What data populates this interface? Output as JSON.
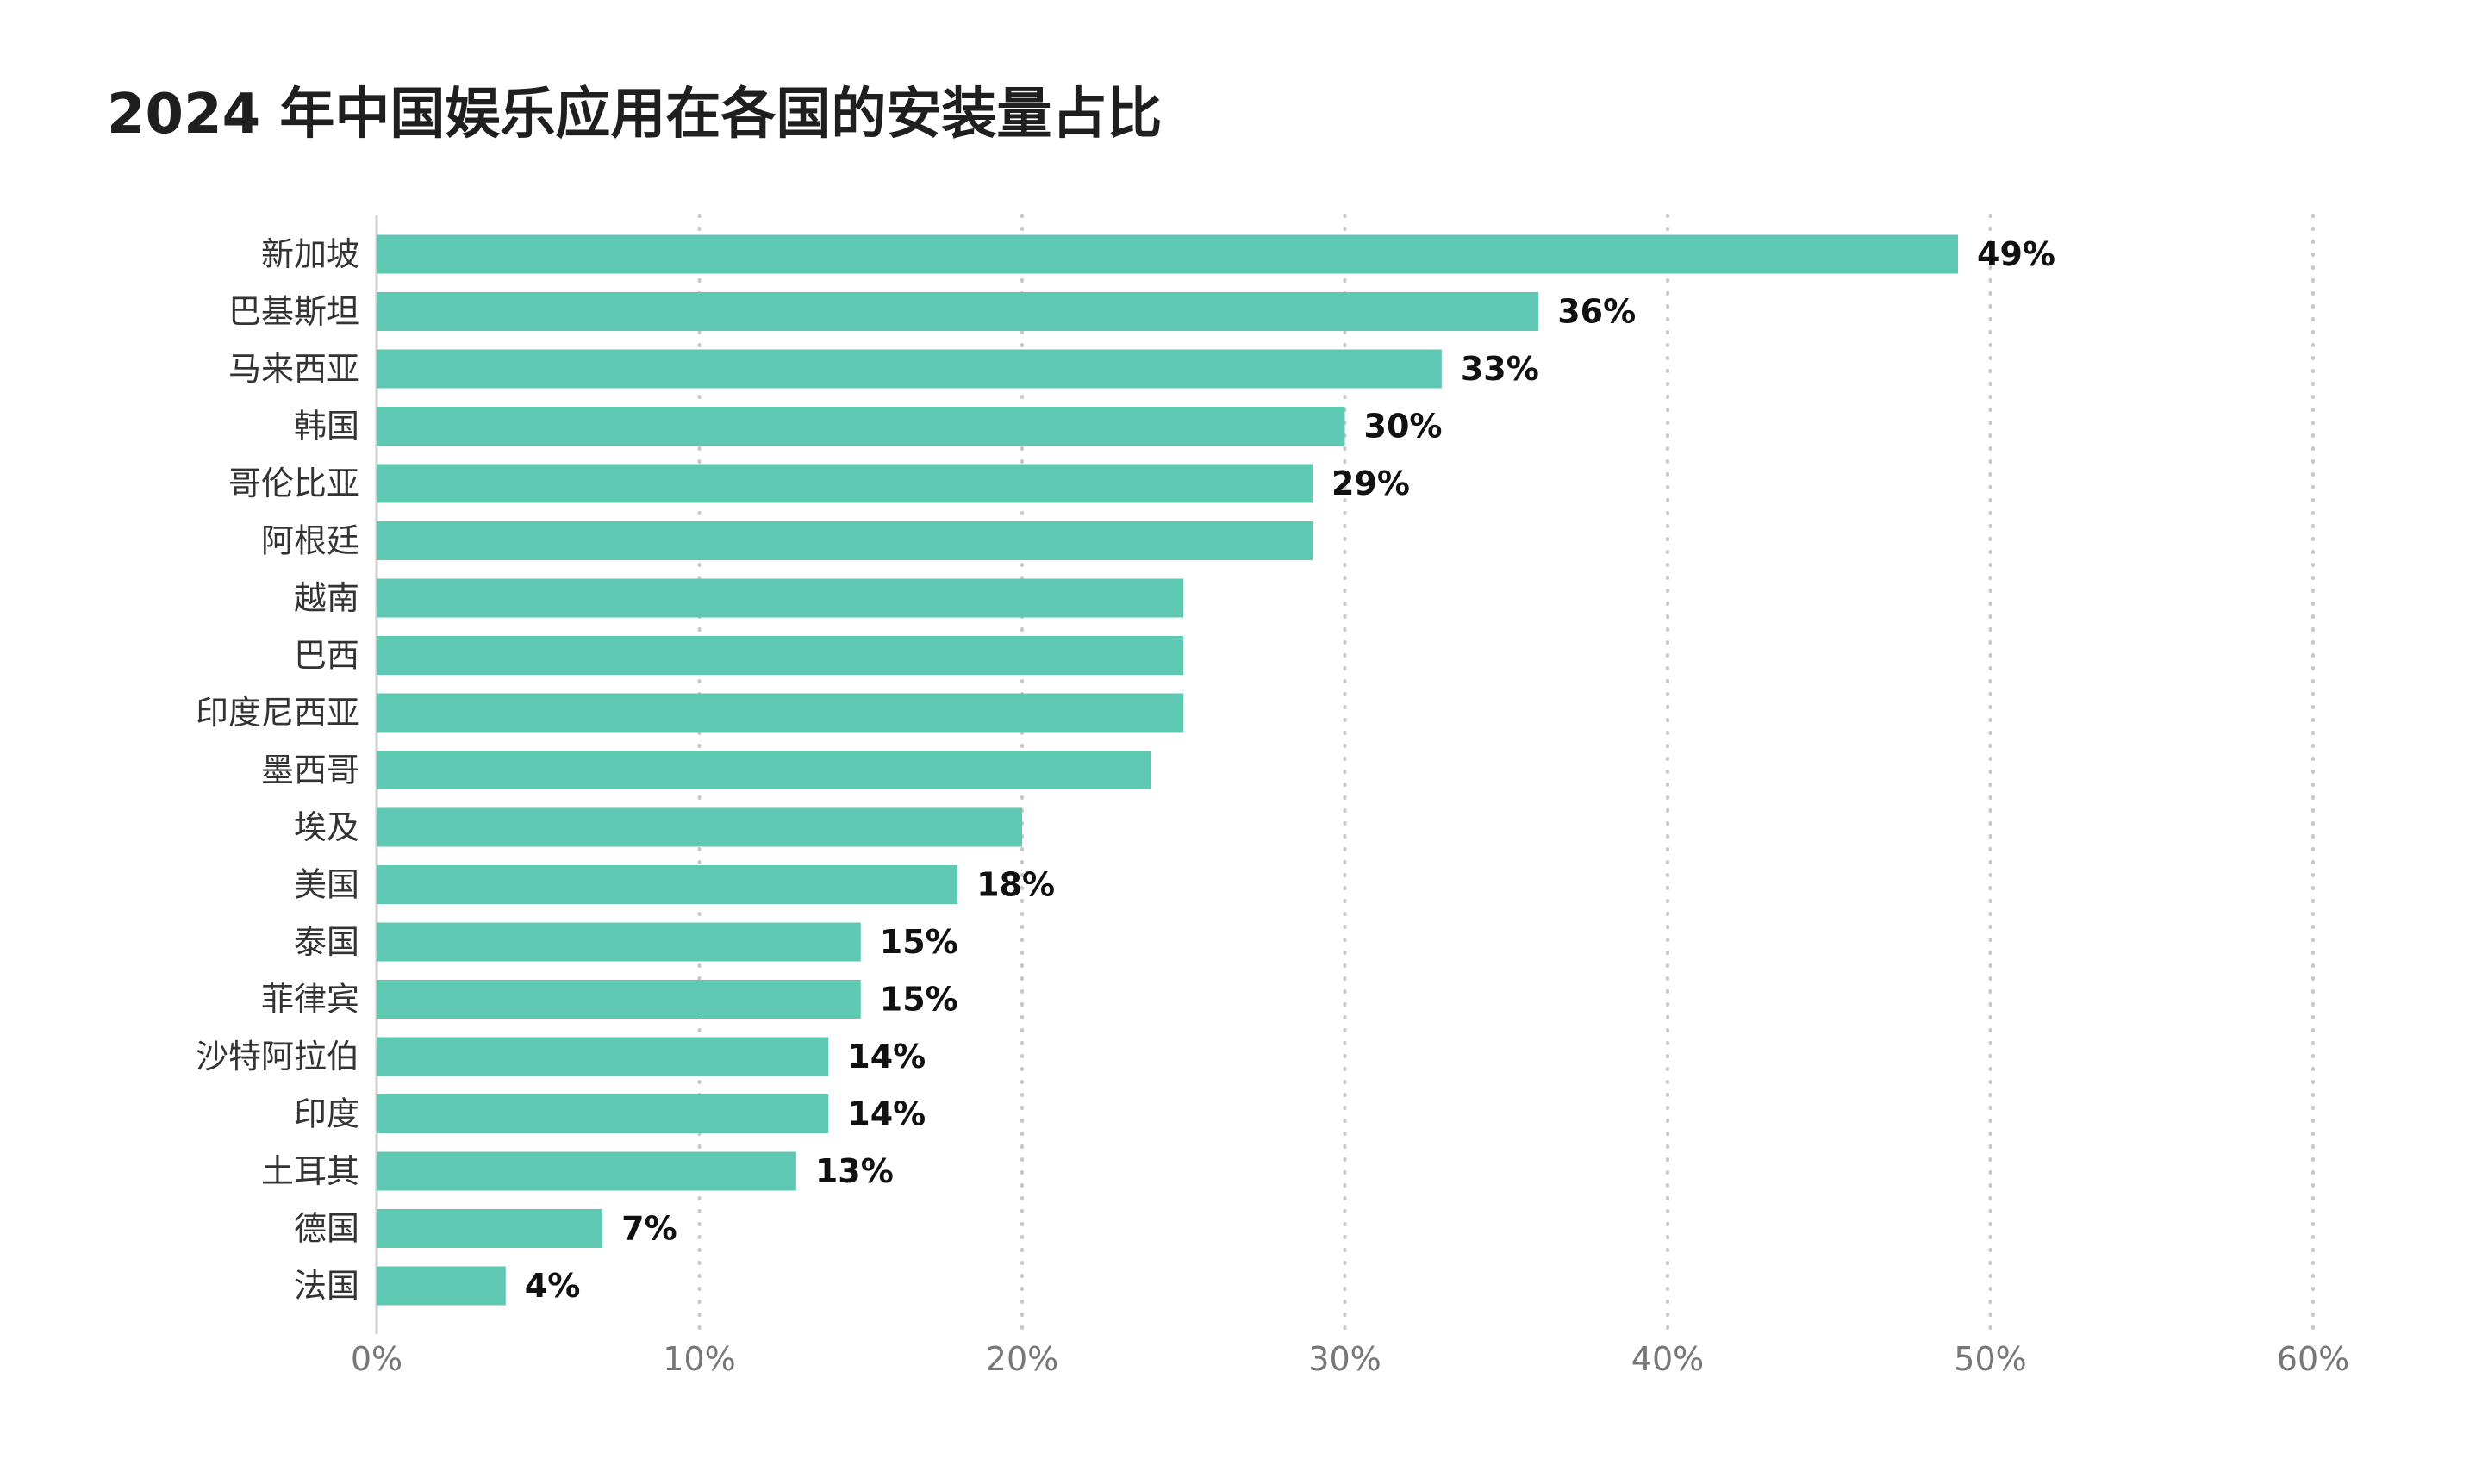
{
  "colors": {
    "bar": "#5ec8b3",
    "text": "#1a1a1a",
    "tick": "#777777",
    "grid": "#c8c8c8"
  },
  "chart_data": {
    "type": "bar",
    "orientation": "horizontal",
    "title": "2024 年中国娱乐应用在各国的安装量占比",
    "xlabel": "",
    "ylabel": "",
    "xlim": [
      0,
      60
    ],
    "grid": "vertical dotted",
    "tick_values": [
      0,
      10,
      20,
      30,
      40,
      50,
      60
    ],
    "tick_labels": [
      "0%",
      "10%",
      "20%",
      "30%",
      "40%",
      "50%",
      "60%"
    ],
    "categories": [
      "新加坡",
      "巴基斯坦",
      "马来西亚",
      "韩国",
      "哥伦比亚",
      "阿根廷",
      "越南",
      "巴西",
      "印度尼西亚",
      "墨西哥",
      "埃及",
      "美国",
      "泰国",
      "菲律宾",
      "沙特阿拉伯",
      "印度",
      "土耳其",
      "德国",
      "法国"
    ],
    "values": [
      49,
      36,
      33,
      30,
      29,
      29,
      25,
      25,
      25,
      24,
      20,
      18,
      15,
      15,
      14,
      14,
      13,
      7,
      4
    ],
    "value_labels": [
      "49%",
      "36%",
      "33%",
      "30%",
      "29%",
      "",
      "",
      "",
      "",
      "",
      "",
      "18%",
      "15%",
      "15%",
      "14%",
      "14%",
      "13%",
      "7%",
      "4%"
    ]
  }
}
